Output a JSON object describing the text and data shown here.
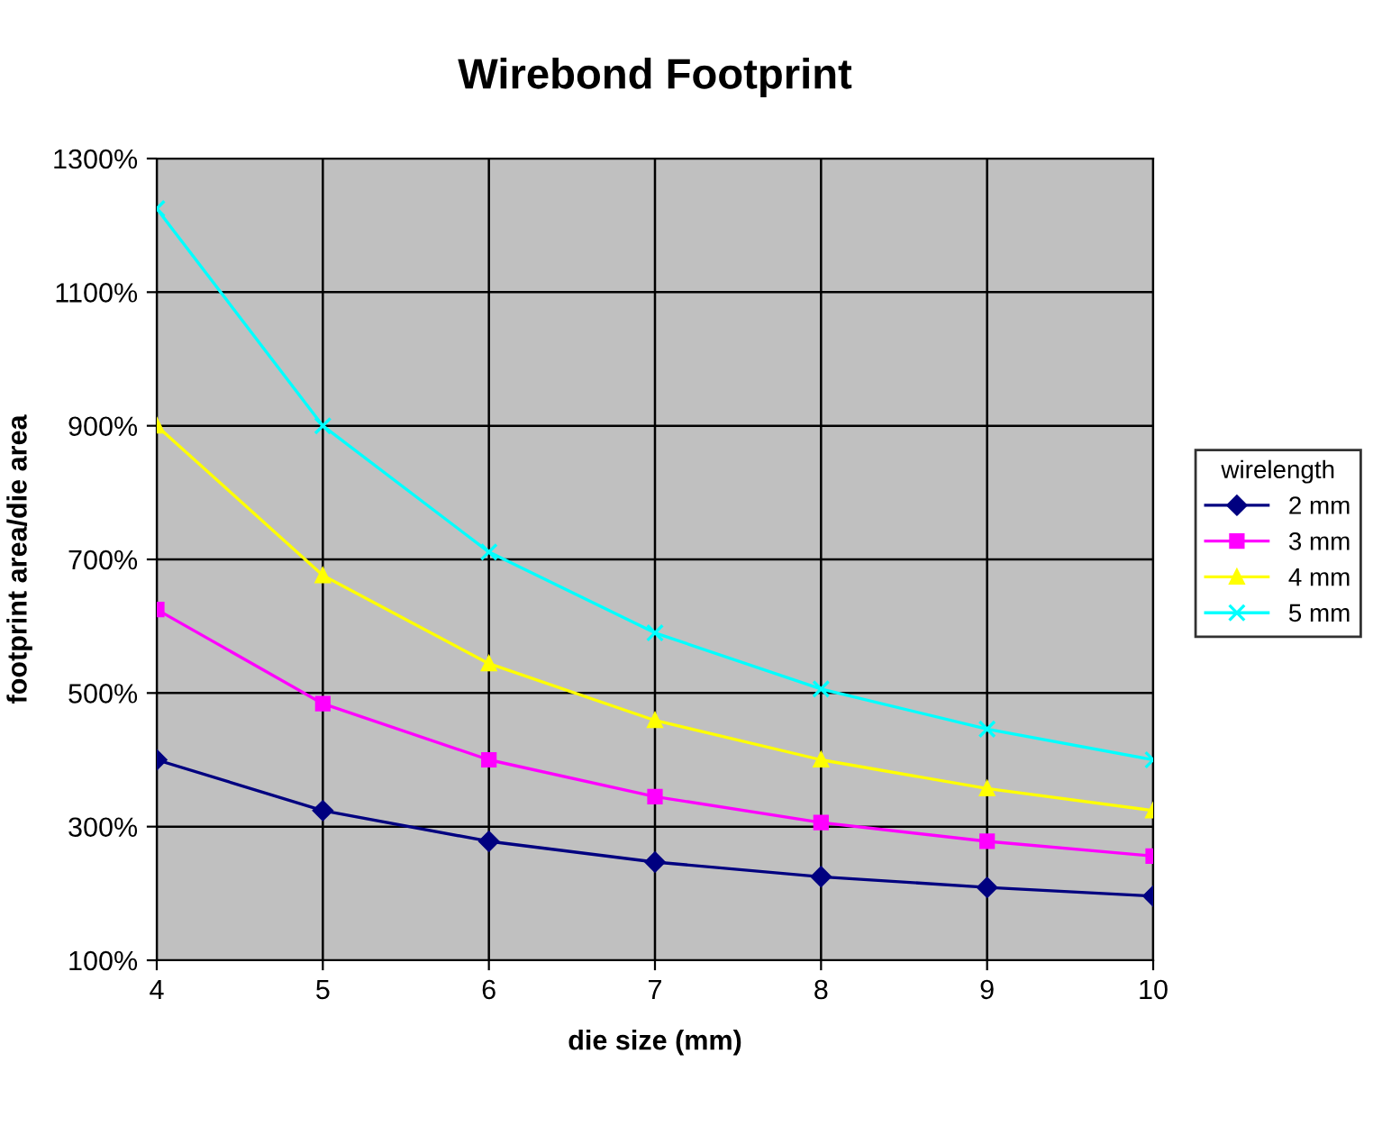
{
  "chart_data": {
    "type": "line",
    "title": "Wirebond Footprint",
    "xlabel": "die size (mm)",
    "ylabel": "footprint area/die area",
    "legend_title": "wirelength",
    "x": [
      4,
      5,
      6,
      7,
      8,
      9,
      10
    ],
    "series": [
      {
        "name": "2 mm",
        "color": "#000080",
        "marker": "diamond",
        "values": [
          400,
          324,
          278,
          247,
          225,
          209,
          196
        ]
      },
      {
        "name": "3 mm",
        "color": "#ff00ff",
        "marker": "square",
        "values": [
          625,
          484,
          400,
          345,
          306,
          278,
          256
        ]
      },
      {
        "name": "4 mm",
        "color": "#ffff00",
        "marker": "triangle",
        "values": [
          900,
          676,
          544,
          459,
          400,
          357,
          324
        ]
      },
      {
        "name": "5 mm",
        "color": "#00ffff",
        "marker": "cross",
        "values": [
          1225,
          900,
          711,
          590,
          506,
          446,
          400
        ]
      }
    ],
    "xlim": [
      4,
      10
    ],
    "xticks": [
      4,
      5,
      6,
      7,
      8,
      9,
      10
    ],
    "ylim": [
      100,
      1300
    ],
    "yticks": [
      {
        "value": 100,
        "label": "100%"
      },
      {
        "value": 300,
        "label": "300%"
      },
      {
        "value": 500,
        "label": "500%"
      },
      {
        "value": 700,
        "label": "700%"
      },
      {
        "value": 900,
        "label": "900%"
      },
      {
        "value": 1100,
        "label": "1100%"
      },
      {
        "value": 1300,
        "label": "1300%"
      }
    ],
    "grid": true,
    "legend": "right",
    "line_style": "solid"
  }
}
